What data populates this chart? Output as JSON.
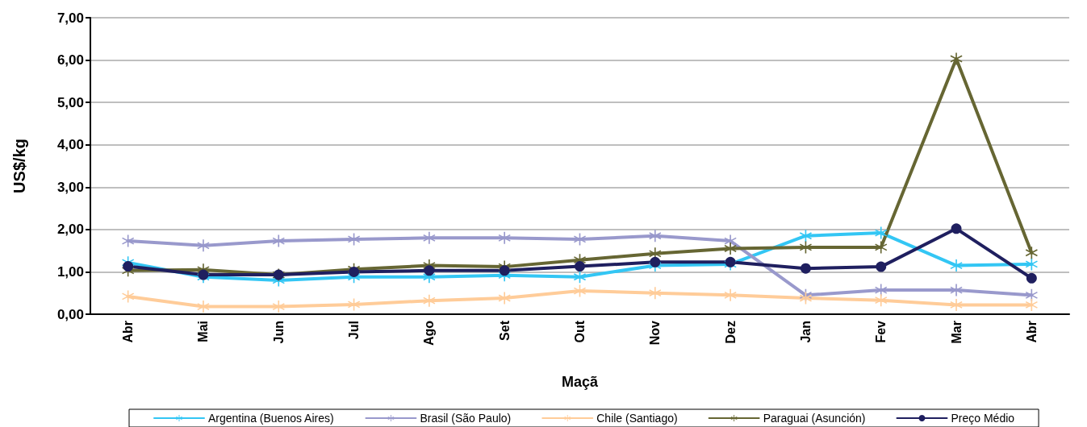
{
  "chart_data": {
    "type": "line",
    "xlabel": "Maçã",
    "ylabel": "US$/kg",
    "categories": [
      "Abr",
      "Mai",
      "Jun",
      "Jul",
      "Ago",
      "Set",
      "Out",
      "Nov",
      "Dez",
      "Jan",
      "Fev",
      "Mar",
      "Abr"
    ],
    "series": [
      {
        "name": "Argentina (Buenos Aires)",
        "color": "#33c6f4",
        "marker": "cross",
        "values": [
          1.22,
          0.88,
          0.8,
          0.88,
          0.88,
          0.92,
          0.88,
          1.15,
          1.18,
          1.85,
          1.92,
          1.15,
          1.18
        ]
      },
      {
        "name": "Brasil (São Paulo)",
        "color": "#9999cc",
        "marker": "cross",
        "values": [
          1.73,
          1.62,
          1.73,
          1.77,
          1.8,
          1.8,
          1.77,
          1.85,
          1.73,
          0.45,
          0.57,
          0.57,
          0.45
        ]
      },
      {
        "name": "Chile (Santiago)",
        "color": "#ffcc99",
        "marker": "cross",
        "values": [
          0.42,
          0.18,
          0.18,
          0.23,
          0.32,
          0.38,
          0.55,
          0.5,
          0.45,
          0.38,
          0.33,
          0.22,
          0.22
        ]
      },
      {
        "name": "Paraguai (Asunción)",
        "color": "#666633",
        "marker": "cross",
        "values": [
          1.03,
          1.05,
          0.93,
          1.06,
          1.15,
          1.12,
          1.28,
          1.43,
          1.55,
          1.58,
          1.58,
          6.03,
          1.45
        ]
      },
      {
        "name": "Preço Médio",
        "color": "#1f1f5f",
        "marker": "circle",
        "values": [
          1.13,
          0.93,
          0.93,
          1.0,
          1.03,
          1.03,
          1.13,
          1.23,
          1.23,
          1.08,
          1.12,
          2.02,
          0.85
        ]
      }
    ],
    "ylim": [
      0,
      7
    ],
    "yticks": [
      {
        "value": 0,
        "label": "0,00"
      },
      {
        "value": 1,
        "label": "1,00"
      },
      {
        "value": 2,
        "label": "2,00"
      },
      {
        "value": 3,
        "label": "3,00"
      },
      {
        "value": 4,
        "label": "4,00"
      },
      {
        "value": 5,
        "label": "5,00"
      },
      {
        "value": 6,
        "label": "6,00"
      },
      {
        "value": 7,
        "label": "7,00"
      }
    ],
    "grid": "y",
    "legend": "bottom",
    "line_style": "solid"
  }
}
